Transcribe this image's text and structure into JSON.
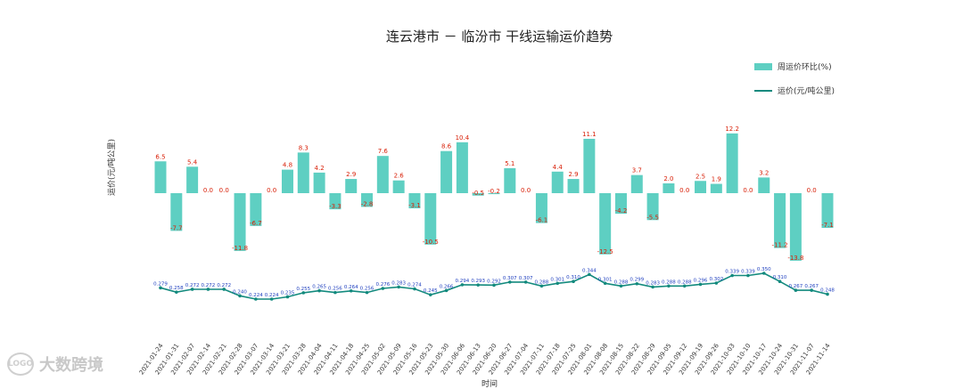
{
  "chart_data": {
    "type": "bar",
    "title": "连云港市 － 临汾市 干线运输运价趋势",
    "ylabel": "运价(元/吨公里)",
    "xlabel": "时间",
    "categories": [
      "2021-01-24",
      "2021-01-31",
      "2021-02-07",
      "2021-02-14",
      "2021-02-21",
      "2021-02-28",
      "2021-03-07",
      "2021-03-14",
      "2021-03-21",
      "2021-03-28",
      "2021-04-04",
      "2021-04-11",
      "2021-04-18",
      "2021-04-25",
      "2021-05-02",
      "2021-05-09",
      "2021-05-16",
      "2021-05-23",
      "2021-05-30",
      "2021-06-06",
      "2021-06-13",
      "2021-06-20",
      "2021-06-27",
      "2021-07-04",
      "2021-07-11",
      "2021-07-18",
      "2021-07-25",
      "2021-08-01",
      "2021-08-08",
      "2021-08-15",
      "2021-08-22",
      "2021-08-29",
      "2021-09-05",
      "2021-09-12",
      "2021-09-19",
      "2021-09-26",
      "2021-10-03",
      "2021-10-10",
      "2021-10-17",
      "2021-10-24",
      "2021-10-31",
      "2021-11-07",
      "2021-11-14"
    ],
    "series": [
      {
        "name": "周运价环比(%)",
        "type": "bar",
        "values": [
          6.5,
          -7.7,
          5.4,
          0.0,
          0.0,
          -11.8,
          -6.7,
          0.0,
          4.8,
          8.3,
          4.2,
          -3.3,
          2.9,
          -2.8,
          7.6,
          2.6,
          -3.1,
          -10.5,
          8.6,
          10.4,
          -0.5,
          -0.2,
          5.1,
          0.0,
          -6.1,
          4.4,
          2.9,
          11.1,
          -12.5,
          -4.2,
          3.7,
          -5.5,
          2.0,
          0.0,
          2.5,
          1.9,
          12.2,
          0.0,
          3.2,
          -11.2,
          -13.8,
          0.0,
          -7.1
        ],
        "labels": [
          "6.5",
          "-7.7",
          "5.4",
          "0.0",
          "0.0",
          "-11.8",
          "-6.7",
          "0.0",
          "4.8",
          "8.3",
          "4.2",
          "-3.3",
          "2.9",
          "-2.8",
          "7.6",
          "2.6",
          "-3.1",
          "-10.5",
          "8.6",
          "10.4",
          "-0.5",
          "-0.2",
          "5.1",
          "0.0",
          "-6.1",
          "4.4",
          "2.9",
          "11.1",
          "-12.5",
          "-4.2",
          "3.7",
          "-5.5",
          "2.0",
          "0.0",
          "2.5",
          "1.9",
          "12.2",
          "0.0",
          "3.2",
          "-11.2",
          "-13.8",
          "0.0",
          "-7.1"
        ]
      },
      {
        "name": "运价(元/吨公里)",
        "type": "line",
        "values": [
          0.279,
          0.258,
          0.272,
          0.272,
          0.272,
          0.24,
          0.224,
          0.224,
          0.235,
          0.255,
          0.265,
          0.256,
          0.264,
          0.256,
          0.276,
          0.283,
          0.274,
          0.245,
          0.266,
          0.294,
          0.293,
          0.292,
          0.307,
          0.307,
          0.288,
          0.301,
          0.31,
          0.344,
          0.301,
          0.288,
          0.299,
          0.283,
          0.288,
          0.288,
          0.296,
          0.302,
          0.339,
          0.339,
          0.35,
          0.31,
          0.267,
          0.267,
          0.248
        ],
        "labels": [
          "0.279",
          "0.258",
          "0.272",
          "0.272",
          "0.272",
          "0.240",
          "0.224",
          "0.224",
          "0.235",
          "0.255",
          "0.265",
          "0.256",
          "0.264",
          "0.256",
          "0.276",
          "0.283",
          "0.274",
          "0.245",
          "0.266",
          "0.294",
          "0.293",
          "0.292",
          "0.307",
          "0.307",
          "0.288",
          "0.301",
          "0.310",
          "0.344",
          "0.301",
          "0.288",
          "0.299",
          "0.283",
          "0.288",
          "0.288",
          "0.296",
          "0.302",
          "0.339",
          "0.339",
          "0.350",
          "0.310",
          "0.267",
          "0.267",
          "0.248"
        ]
      }
    ],
    "legend_position": "top-right",
    "grid": false,
    "colors": {
      "bar": "#5ecfc2",
      "line": "#138a7e",
      "bar_label": "#d81e06",
      "line_label": "#1f3fbf",
      "point": "#138a7e"
    }
  },
  "watermark": {
    "text": "大数跨境",
    "logo_text": "LOGO"
  }
}
